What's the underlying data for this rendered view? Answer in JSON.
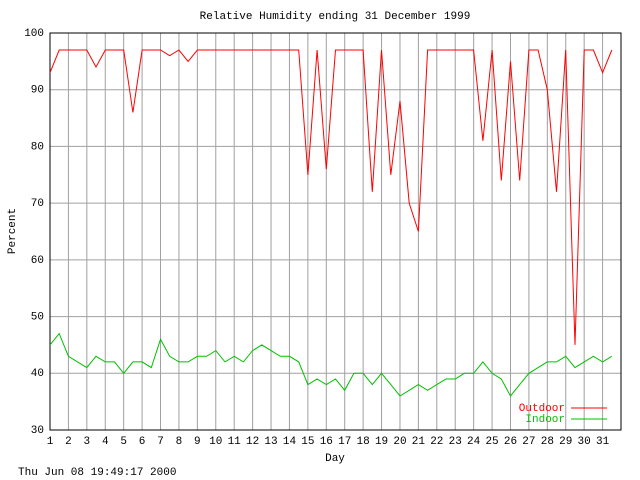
{
  "chart_data": {
    "type": "line",
    "title": "Relative Humidity ending 31 December 1999",
    "x_label": "Day",
    "y_label": "Percent",
    "timestamp": "Thu Jun 08 19:49:17 2000",
    "xlim": [
      1,
      32
    ],
    "ylim": [
      30,
      100
    ],
    "xticks": [
      1,
      2,
      3,
      4,
      5,
      6,
      7,
      8,
      9,
      10,
      11,
      12,
      13,
      14,
      15,
      16,
      17,
      18,
      19,
      20,
      21,
      22,
      23,
      24,
      25,
      26,
      27,
      28,
      29,
      30,
      31
    ],
    "yticks": [
      30,
      40,
      50,
      60,
      70,
      80,
      90,
      100
    ],
    "grid": true,
    "legend": "bottom-right",
    "x": [
      1,
      1.5,
      2,
      2.5,
      3,
      3.5,
      4,
      4.5,
      5,
      5.5,
      6,
      6.5,
      7,
      7.5,
      8,
      8.5,
      9,
      9.5,
      10,
      10.5,
      11,
      11.5,
      12,
      12.5,
      13,
      13.5,
      14,
      14.5,
      15,
      15.5,
      16,
      16.5,
      17,
      17.5,
      18,
      18.5,
      19,
      19.5,
      20,
      20.5,
      21,
      21.5,
      22,
      22.5,
      23,
      23.5,
      24,
      24.5,
      25,
      25.5,
      26,
      26.5,
      27,
      27.5,
      28,
      28.5,
      29,
      29.5,
      30,
      30.5,
      31,
      31.5
    ],
    "series": [
      {
        "name": "Outdoor",
        "color": "#ff0000",
        "values": [
          93,
          97,
          97,
          97,
          97,
          94,
          97,
          97,
          97,
          86,
          97,
          97,
          97,
          96,
          97,
          95,
          97,
          97,
          97,
          97,
          97,
          97,
          97,
          97,
          97,
          97,
          97,
          97,
          75,
          97,
          76,
          97,
          97,
          97,
          97,
          72,
          97,
          75,
          88,
          70,
          65,
          97,
          97,
          97,
          97,
          97,
          97,
          81,
          97,
          74,
          95,
          74,
          97,
          97,
          90,
          72,
          97,
          45,
          97,
          97,
          93,
          97
        ]
      },
      {
        "name": "Indoor",
        "color": "#00c000",
        "values": [
          45,
          47,
          43,
          42,
          41,
          43,
          42,
          42,
          40,
          42,
          42,
          41,
          46,
          43,
          42,
          42,
          43,
          43,
          44,
          42,
          43,
          42,
          44,
          45,
          44,
          43,
          43,
          42,
          38,
          39,
          38,
          39,
          37,
          40,
          40,
          38,
          40,
          38,
          36,
          37,
          38,
          37,
          38,
          39,
          39,
          40,
          40,
          42,
          40,
          39,
          36,
          38,
          40,
          41,
          42,
          42,
          43,
          41,
          42,
          43,
          42,
          43
        ]
      }
    ]
  }
}
